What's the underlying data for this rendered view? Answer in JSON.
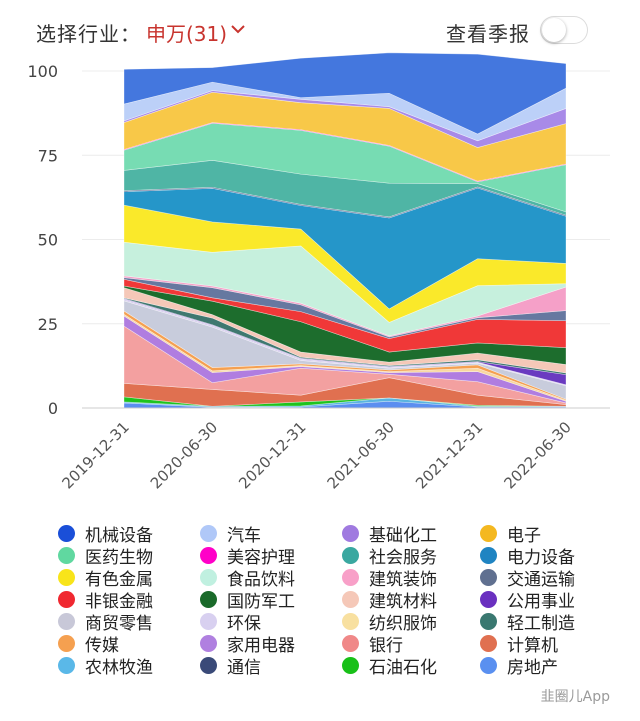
{
  "header": {
    "industry_label": "选择行业：",
    "industry_value": "申万(31)",
    "season_label": "查看季报"
  },
  "watermark": "韭圈儿App",
  "chart_data": {
    "type": "area",
    "stacked": true,
    "title": "",
    "xlabel": "",
    "ylabel": "",
    "ylim": [
      0,
      100
    ],
    "yticks": [
      0,
      25,
      50,
      75,
      100
    ],
    "grid": true,
    "categories": [
      "2019-12-31",
      "2020-06-30",
      "2020-12-31",
      "2021-06-30",
      "2021-12-31",
      "2022-06-30"
    ],
    "series": [
      {
        "name": "房地产",
        "color": "#5b8ef0",
        "values": [
          1.5,
          0.2,
          0.3,
          2.0,
          0.3,
          0.3
        ]
      },
      {
        "name": "农林牧渔",
        "color": "#5ab4e0",
        "values": [
          0.3,
          0.3,
          0.3,
          1.0,
          0.2,
          0.2
        ]
      },
      {
        "name": "石油石化",
        "color": "#1ec31e",
        "values": [
          1.5,
          0.0,
          1.2,
          0.0,
          0.3,
          0.0
        ]
      },
      {
        "name": "计算机",
        "color": "#e07050",
        "values": [
          4.0,
          5.0,
          2.0,
          6.0,
          3.0,
          0.5
        ]
      },
      {
        "name": "银行",
        "color": "#f3a0a0",
        "values": [
          17.0,
          2.0,
          8.0,
          1.0,
          4.0,
          0.5
        ]
      },
      {
        "name": "家用电器",
        "color": "#b07de0",
        "values": [
          3.0,
          3.0,
          0.5,
          0.5,
          3.0,
          0.5
        ]
      },
      {
        "name": "纺织服饰",
        "color": "#f8d8a0",
        "values": [
          0.5,
          0.5,
          0.3,
          0.3,
          1.0,
          0.3
        ]
      },
      {
        "name": "传媒",
        "color": "#f5a050",
        "values": [
          1.0,
          1.0,
          0.5,
          0.5,
          1.0,
          0.3
        ]
      },
      {
        "name": "商贸零售",
        "color": "#c8ccdc",
        "values": [
          3.0,
          12.0,
          1.0,
          0.5,
          0.5,
          4.0
        ]
      },
      {
        "name": "环保",
        "color": "#d8d0ee",
        "values": [
          0.5,
          0.5,
          0.5,
          0.3,
          0.3,
          0.3
        ]
      },
      {
        "name": "公用事业",
        "color": "#6a3ac0",
        "values": [
          0.2,
          0.2,
          0.2,
          0.2,
          0.2,
          3.0
        ]
      },
      {
        "name": "轻工制造",
        "color": "#3f7870",
        "values": [
          0.2,
          2.0,
          0.3,
          0.3,
          0.5,
          0.5
        ]
      },
      {
        "name": "建筑材料",
        "color": "#f5c8b8",
        "values": [
          3.0,
          1.0,
          1.5,
          1.0,
          2.0,
          2.5
        ]
      },
      {
        "name": "国防军工",
        "color": "#1d6d2d",
        "values": [
          0.5,
          4.0,
          9.0,
          3.0,
          3.0,
          5.0
        ]
      },
      {
        "name": "非银金融",
        "color": "#f03838",
        "values": [
          2.0,
          1.0,
          3.0,
          4.0,
          7.0,
          8.0
        ]
      },
      {
        "name": "交通运输",
        "color": "#6678a0",
        "values": [
          0.5,
          3.0,
          2.0,
          0.5,
          0.5,
          3.0
        ]
      },
      {
        "name": "建筑装饰",
        "color": "#f5a0c8",
        "values": [
          0.5,
          0.5,
          0.5,
          0.3,
          0.5,
          7.0
        ]
      },
      {
        "name": "食品饮料",
        "color": "#c6f0dd",
        "values": [
          10.0,
          10.0,
          17.0,
          4.0,
          9.0,
          1.0
        ]
      },
      {
        "name": "有色金属",
        "color": "#fae92a",
        "values": [
          11.0,
          9.0,
          5.0,
          4.0,
          8.0,
          6.0
        ]
      },
      {
        "name": "电力设备",
        "color": "#2596c9",
        "values": [
          4.0,
          10.0,
          7.0,
          27.0,
          21.0,
          14.0
        ]
      },
      {
        "name": "通信",
        "color": "#3e4f80",
        "values": [
          0.3,
          0.3,
          0.3,
          0.3,
          0.3,
          0.3
        ]
      },
      {
        "name": "社会服务",
        "color": "#4fb5a5",
        "values": [
          6.0,
          8.0,
          9.0,
          10.0,
          1.0,
          1.0
        ]
      },
      {
        "name": "医药生物",
        "color": "#77dcb3",
        "values": [
          6.0,
          11.0,
          13.0,
          11.0,
          0.5,
          14.0
        ]
      },
      {
        "name": "美容护理",
        "color": "#ff00c8",
        "values": [
          0.2,
          0.2,
          0.2,
          0.2,
          0.2,
          0.2
        ]
      },
      {
        "name": "电子",
        "color": "#f8c848",
        "values": [
          8.0,
          9.0,
          8.0,
          11.0,
          10.0,
          12.0
        ]
      },
      {
        "name": "基础化工",
        "color": "#a88ae8",
        "values": [
          0.5,
          0.5,
          1.0,
          0.5,
          2.0,
          4.5
        ]
      },
      {
        "name": "汽车",
        "color": "#bcd0f8",
        "values": [
          5.0,
          2.5,
          0.5,
          4.0,
          2.0,
          6.0
        ]
      },
      {
        "name": "机械设备",
        "color": "#4477de",
        "values": [
          10.3,
          4.3,
          11.7,
          12.0,
          23.7,
          7.3
        ]
      }
    ]
  },
  "legend": [
    {
      "name": "机械设备",
      "color": "#1a4fd8"
    },
    {
      "name": "汽车",
      "color": "#b0c8f8"
    },
    {
      "name": "基础化工",
      "color": "#a07ae0"
    },
    {
      "name": "电子",
      "color": "#f4b820"
    },
    {
      "name": "医药生物",
      "color": "#60d8a0"
    },
    {
      "name": "美容护理",
      "color": "#ff00c8"
    },
    {
      "name": "社会服务",
      "color": "#3aa8a0"
    },
    {
      "name": "电力设备",
      "color": "#1f84c2"
    },
    {
      "name": "有色金属",
      "color": "#f8e41a"
    },
    {
      "name": "食品饮料",
      "color": "#c0f0e0"
    },
    {
      "name": "建筑装饰",
      "color": "#f8a0c8"
    },
    {
      "name": "交通运输",
      "color": "#607090"
    },
    {
      "name": "非银金融",
      "color": "#f02830"
    },
    {
      "name": "国防军工",
      "color": "#1a6a2a"
    },
    {
      "name": "建筑材料",
      "color": "#f5c8b8"
    },
    {
      "name": "公用事业",
      "color": "#6a30c0"
    },
    {
      "name": "商贸零售",
      "color": "#c8c8d8"
    },
    {
      "name": "环保",
      "color": "#d8d0f0"
    },
    {
      "name": "纺织服饰",
      "color": "#f8e0a0"
    },
    {
      "name": "轻工制造",
      "color": "#3a7870"
    },
    {
      "name": "传媒",
      "color": "#f5a050"
    },
    {
      "name": "家用电器",
      "color": "#b080e0"
    },
    {
      "name": "银行",
      "color": "#f08888"
    },
    {
      "name": "计算机",
      "color": "#e07050"
    },
    {
      "name": "农林牧渔",
      "color": "#5ab8e8"
    },
    {
      "name": "通信",
      "color": "#3a4a78"
    },
    {
      "name": "石油石化",
      "color": "#18c018"
    },
    {
      "name": "房地产",
      "color": "#5a90f0"
    }
  ]
}
